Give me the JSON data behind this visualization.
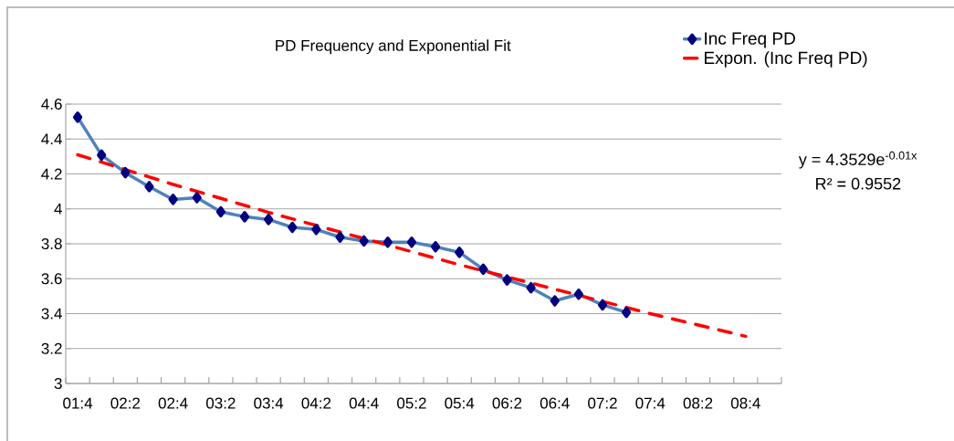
{
  "chart_data": {
    "type": "line",
    "title": "PD Frequency and Exponential Fit",
    "categories": [
      "01:4",
      null,
      "02:2",
      null,
      "02:4",
      null,
      "03:2",
      null,
      "03:4",
      null,
      "04:2",
      null,
      "04:4",
      null,
      "05:2",
      null,
      "05:4",
      null,
      "06:2",
      null,
      "06:4",
      null,
      "07:2",
      null,
      "07:4",
      null,
      "08:2",
      null,
      "08:4",
      null
    ],
    "series": [
      {
        "name": "Inc Freq PD",
        "color": "#4f81bd",
        "marker": "diamond",
        "values": [
          4.525,
          4.308,
          4.207,
          4.127,
          4.054,
          4.064,
          3.983,
          3.955,
          3.939,
          3.894,
          3.882,
          3.838,
          3.816,
          3.809,
          3.809,
          3.783,
          3.751,
          3.654,
          3.593,
          3.548,
          3.473,
          3.511,
          3.45,
          3.407,
          null,
          null,
          null,
          null,
          null,
          null
        ]
      },
      {
        "name": "Expon. (Inc Freq PD)",
        "color": "#ff0000",
        "type": "line",
        "line_style": "dashed",
        "x": [
          "01:4",
          "02:4",
          "03:4",
          "04:4",
          "05:4",
          "06:4",
          "07:4",
          "08:4"
        ],
        "values": [
          4.31,
          4.14,
          3.98,
          3.83,
          3.68,
          3.54,
          3.4,
          3.27
        ]
      }
    ],
    "ylim": [
      3,
      4.6
    ],
    "yticks": [
      3,
      3.2,
      3.4,
      3.6,
      3.8,
      4,
      4.2,
      4.4,
      4.6
    ],
    "grid": "y",
    "legend": "top right",
    "annotations": [
      "y = 4.3529e$^{-0.01x}$",
      "R² = 0.9552"
    ]
  }
}
